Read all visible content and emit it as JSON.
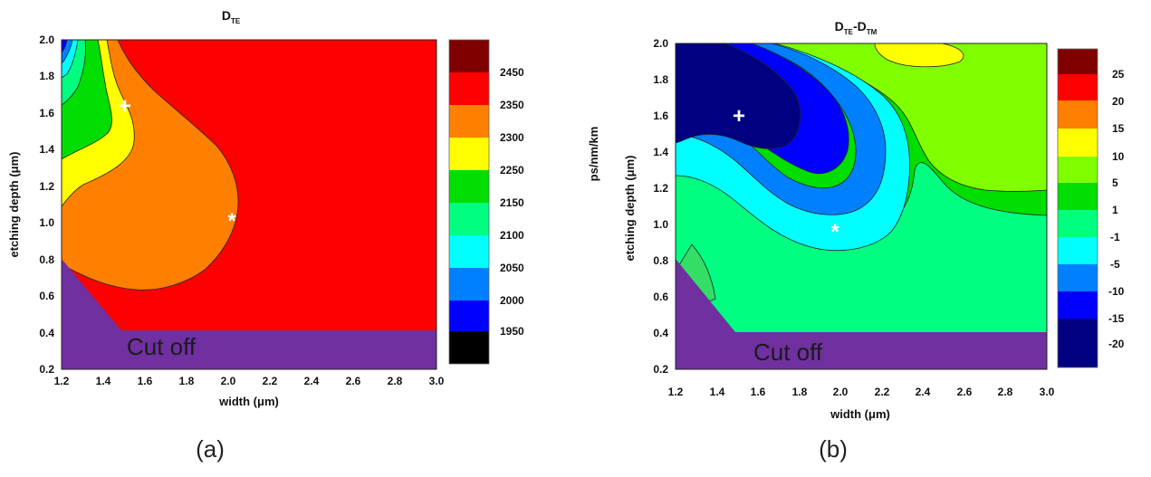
{
  "chart_data": [
    {
      "type": "contour",
      "panel_label": "(a)",
      "title_main": "D",
      "title_sub": "TE",
      "xlabel": "width (μm)",
      "ylabel": "etching depth (μm)",
      "xlim": [
        1.2,
        3.0
      ],
      "ylim": [
        0.2,
        2.0
      ],
      "xticks": [
        "1.2",
        "1.4",
        "1.6",
        "1.8",
        "2.0",
        "2.2",
        "2.4",
        "2.6",
        "2.8",
        "3.0"
      ],
      "yticks": [
        "0.2",
        "0.4",
        "0.6",
        "0.8",
        "1.0",
        "1.2",
        "1.4",
        "1.6",
        "1.8",
        "2.0"
      ],
      "colorbar": {
        "label": "",
        "ticks": [
          "2450",
          "2350",
          "2300",
          "2250",
          "2150",
          "2100",
          "2050",
          "2000",
          "1950"
        ],
        "colors": [
          "#800000",
          "#ff0000",
          "#ff8000",
          "#ffff00",
          "#00dd00",
          "#00ff80",
          "#00ffff",
          "#0080ff",
          "#0000ff",
          "#000000"
        ]
      },
      "cutoff_label": "Cut off",
      "markers": [
        {
          "symbol": "+",
          "x": 1.5,
          "y": 1.63
        },
        {
          "symbol": "*",
          "x": 2.02,
          "y": 1.02
        }
      ]
    },
    {
      "type": "contour",
      "panel_label": "(b)",
      "title_main": "D",
      "title_sub": "TE",
      "title_sep": "-D",
      "title_sub2": "TM",
      "xlabel": "width (μm)",
      "ylabel": "etching depth (μm)",
      "xlim": [
        1.2,
        3.0
      ],
      "ylim": [
        0.2,
        2.0
      ],
      "xticks": [
        "1.2",
        "1.4",
        "1.6",
        "1.8",
        "2.0",
        "2.2",
        "2.4",
        "2.6",
        "2.8",
        "3.0"
      ],
      "yticks": [
        "0.2",
        "0.4",
        "0.6",
        "0.8",
        "1.0",
        "1.2",
        "1.4",
        "1.6",
        "1.8",
        "2.0"
      ],
      "colorbar": {
        "label": "ps/nm/km",
        "ticks": [
          "25",
          "20",
          "15",
          "10",
          "5",
          "1",
          "-1",
          "-5",
          "-10",
          "-15",
          "-20"
        ],
        "colors": [
          "#800000",
          "#ff0000",
          "#ff8000",
          "#ffff00",
          "#80ff00",
          "#00dd00",
          "#00ff80",
          "#00ffff",
          "#0080ff",
          "#0000ff",
          "#000080"
        ]
      },
      "cutoff_label": "Cut off",
      "markers": [
        {
          "symbol": "+",
          "x": 1.5,
          "y": 1.61
        },
        {
          "symbol": "*",
          "x": 1.98,
          "y": 0.98
        }
      ]
    }
  ]
}
